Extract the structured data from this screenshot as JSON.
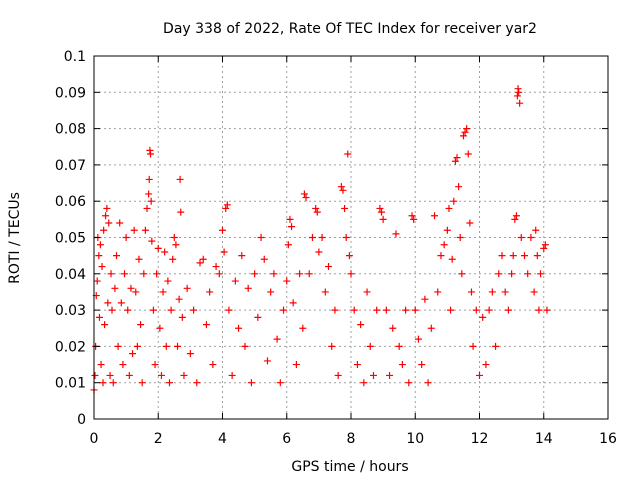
{
  "chart_data": {
    "type": "scatter",
    "title": "Day 338 of 2022, Rate Of TEC Index for receiver yar2",
    "xlabel": "GPS time / hours",
    "ylabel": "ROTI / TECUs",
    "xlim": [
      0,
      16
    ],
    "ylim": [
      0,
      0.1
    ],
    "x_ticks": [
      "0",
      "2",
      "4",
      "6",
      "8",
      "10",
      "12",
      "14",
      "16"
    ],
    "y_ticks": [
      "0",
      "0.01",
      "0.02",
      "0.03",
      "0.04",
      "0.05",
      "0.06",
      "0.07",
      "0.08",
      "0.09",
      "0.1"
    ],
    "grid": true,
    "marker": "+",
    "series_color": "#ff0000",
    "series": [
      {
        "points": [
          [
            0.0,
            0.008
          ],
          [
            0.03,
            0.012
          ],
          [
            0.05,
            0.02
          ],
          [
            0.07,
            0.034
          ],
          [
            0.1,
            0.038
          ],
          [
            0.12,
            0.05
          ],
          [
            0.15,
            0.045
          ],
          [
            0.17,
            0.028
          ],
          [
            0.2,
            0.048
          ],
          [
            0.22,
            0.015
          ],
          [
            0.25,
            0.042
          ],
          [
            0.28,
            0.01
          ],
          [
            0.3,
            0.052
          ],
          [
            0.33,
            0.026
          ],
          [
            0.36,
            0.056
          ],
          [
            0.4,
            0.058
          ],
          [
            0.43,
            0.032
          ],
          [
            0.46,
            0.054
          ],
          [
            0.5,
            0.012
          ],
          [
            0.53,
            0.04
          ],
          [
            0.56,
            0.03
          ],
          [
            0.6,
            0.01
          ],
          [
            0.65,
            0.036
          ],
          [
            0.7,
            0.045
          ],
          [
            0.75,
            0.02
          ],
          [
            0.8,
            0.054
          ],
          [
            0.85,
            0.032
          ],
          [
            0.9,
            0.015
          ],
          [
            0.95,
            0.04
          ],
          [
            1.0,
            0.05
          ],
          [
            1.05,
            0.03
          ],
          [
            1.1,
            0.012
          ],
          [
            1.15,
            0.036
          ],
          [
            1.2,
            0.018
          ],
          [
            1.25,
            0.052
          ],
          [
            1.3,
            0.035
          ],
          [
            1.35,
            0.02
          ],
          [
            1.4,
            0.044
          ],
          [
            1.45,
            0.026
          ],
          [
            1.5,
            0.01
          ],
          [
            1.55,
            0.04
          ],
          [
            1.6,
            0.052
          ],
          [
            1.65,
            0.058
          ],
          [
            1.7,
            0.062
          ],
          [
            1.72,
            0.066
          ],
          [
            1.74,
            0.074
          ],
          [
            1.76,
            0.073
          ],
          [
            1.78,
            0.06
          ],
          [
            1.8,
            0.049
          ],
          [
            1.85,
            0.03
          ],
          [
            1.9,
            0.015
          ],
          [
            1.95,
            0.04
          ],
          [
            2.0,
            0.047
          ],
          [
            2.05,
            0.025
          ],
          [
            2.1,
            0.012
          ],
          [
            2.15,
            0.035
          ],
          [
            2.2,
            0.046
          ],
          [
            2.25,
            0.02
          ],
          [
            2.3,
            0.038
          ],
          [
            2.35,
            0.01
          ],
          [
            2.4,
            0.03
          ],
          [
            2.45,
            0.044
          ],
          [
            2.5,
            0.05
          ],
          [
            2.55,
            0.048
          ],
          [
            2.6,
            0.02
          ],
          [
            2.65,
            0.033
          ],
          [
            2.68,
            0.066
          ],
          [
            2.7,
            0.057
          ],
          [
            2.75,
            0.028
          ],
          [
            2.8,
            0.012
          ],
          [
            2.9,
            0.036
          ],
          [
            3.0,
            0.018
          ],
          [
            3.1,
            0.03
          ],
          [
            3.2,
            0.01
          ],
          [
            3.3,
            0.043
          ],
          [
            3.4,
            0.044
          ],
          [
            3.5,
            0.026
          ],
          [
            3.6,
            0.035
          ],
          [
            3.7,
            0.015
          ],
          [
            3.8,
            0.042
          ],
          [
            3.9,
            0.04
          ],
          [
            4.0,
            0.052
          ],
          [
            4.05,
            0.046
          ],
          [
            4.1,
            0.058
          ],
          [
            4.15,
            0.059
          ],
          [
            4.2,
            0.03
          ],
          [
            4.3,
            0.012
          ],
          [
            4.4,
            0.038
          ],
          [
            4.5,
            0.025
          ],
          [
            4.6,
            0.045
          ],
          [
            4.7,
            0.02
          ],
          [
            4.8,
            0.036
          ],
          [
            4.9,
            0.01
          ],
          [
            5.0,
            0.04
          ],
          [
            5.1,
            0.028
          ],
          [
            5.2,
            0.05
          ],
          [
            5.3,
            0.044
          ],
          [
            5.4,
            0.016
          ],
          [
            5.5,
            0.035
          ],
          [
            5.6,
            0.04
          ],
          [
            5.7,
            0.022
          ],
          [
            5.8,
            0.01
          ],
          [
            5.9,
            0.03
          ],
          [
            6.0,
            0.038
          ],
          [
            6.05,
            0.048
          ],
          [
            6.1,
            0.055
          ],
          [
            6.15,
            0.053
          ],
          [
            6.2,
            0.032
          ],
          [
            6.3,
            0.015
          ],
          [
            6.4,
            0.04
          ],
          [
            6.5,
            0.025
          ],
          [
            6.55,
            0.062
          ],
          [
            6.6,
            0.061
          ],
          [
            6.7,
            0.04
          ],
          [
            6.8,
            0.05
          ],
          [
            6.9,
            0.058
          ],
          [
            6.95,
            0.057
          ],
          [
            7.0,
            0.046
          ],
          [
            7.1,
            0.05
          ],
          [
            7.2,
            0.035
          ],
          [
            7.3,
            0.042
          ],
          [
            7.4,
            0.02
          ],
          [
            7.5,
            0.03
          ],
          [
            7.6,
            0.012
          ],
          [
            7.7,
            0.064
          ],
          [
            7.75,
            0.063
          ],
          [
            7.8,
            0.058
          ],
          [
            7.85,
            0.05
          ],
          [
            7.9,
            0.073
          ],
          [
            7.95,
            0.045
          ],
          [
            8.0,
            0.04
          ],
          [
            8.1,
            0.03
          ],
          [
            8.2,
            0.015
          ],
          [
            8.3,
            0.026
          ],
          [
            8.4,
            0.01
          ],
          [
            8.5,
            0.035
          ],
          [
            8.6,
            0.02
          ],
          [
            8.7,
            0.012
          ],
          [
            8.8,
            0.03
          ],
          [
            8.9,
            0.058
          ],
          [
            8.95,
            0.057
          ],
          [
            9.0,
            0.055
          ],
          [
            9.1,
            0.03
          ],
          [
            9.2,
            0.012
          ],
          [
            9.3,
            0.025
          ],
          [
            9.4,
            0.051
          ],
          [
            9.5,
            0.02
          ],
          [
            9.6,
            0.015
          ],
          [
            9.7,
            0.03
          ],
          [
            9.8,
            0.01
          ],
          [
            9.9,
            0.056
          ],
          [
            9.95,
            0.055
          ],
          [
            10.0,
            0.03
          ],
          [
            10.1,
            0.022
          ],
          [
            10.2,
            0.015
          ],
          [
            10.3,
            0.033
          ],
          [
            10.4,
            0.01
          ],
          [
            10.5,
            0.025
          ],
          [
            10.6,
            0.056
          ],
          [
            10.7,
            0.035
          ],
          [
            10.8,
            0.045
          ],
          [
            10.9,
            0.048
          ],
          [
            11.0,
            0.052
          ],
          [
            11.05,
            0.058
          ],
          [
            11.1,
            0.03
          ],
          [
            11.15,
            0.044
          ],
          [
            11.2,
            0.06
          ],
          [
            11.25,
            0.071
          ],
          [
            11.3,
            0.072
          ],
          [
            11.35,
            0.064
          ],
          [
            11.4,
            0.05
          ],
          [
            11.45,
            0.04
          ],
          [
            11.5,
            0.078
          ],
          [
            11.55,
            0.079
          ],
          [
            11.6,
            0.08
          ],
          [
            11.65,
            0.073
          ],
          [
            11.7,
            0.054
          ],
          [
            11.75,
            0.035
          ],
          [
            11.8,
            0.02
          ],
          [
            11.9,
            0.03
          ],
          [
            12.0,
            0.012
          ],
          [
            12.1,
            0.028
          ],
          [
            12.2,
            0.015
          ],
          [
            12.3,
            0.03
          ],
          [
            12.4,
            0.035
          ],
          [
            12.5,
            0.02
          ],
          [
            12.6,
            0.04
          ],
          [
            12.7,
            0.045
          ],
          [
            12.8,
            0.035
          ],
          [
            12.9,
            0.03
          ],
          [
            13.0,
            0.04
          ],
          [
            13.05,
            0.045
          ],
          [
            13.1,
            0.055
          ],
          [
            13.15,
            0.056
          ],
          [
            13.18,
            0.089
          ],
          [
            13.2,
            0.091
          ],
          [
            13.22,
            0.09
          ],
          [
            13.25,
            0.087
          ],
          [
            13.3,
            0.05
          ],
          [
            13.4,
            0.045
          ],
          [
            13.5,
            0.04
          ],
          [
            13.6,
            0.05
          ],
          [
            13.7,
            0.035
          ],
          [
            13.75,
            0.052
          ],
          [
            13.8,
            0.045
          ],
          [
            13.85,
            0.03
          ],
          [
            13.9,
            0.04
          ],
          [
            14.0,
            0.047
          ],
          [
            14.05,
            0.048
          ],
          [
            14.1,
            0.03
          ]
        ]
      }
    ]
  }
}
